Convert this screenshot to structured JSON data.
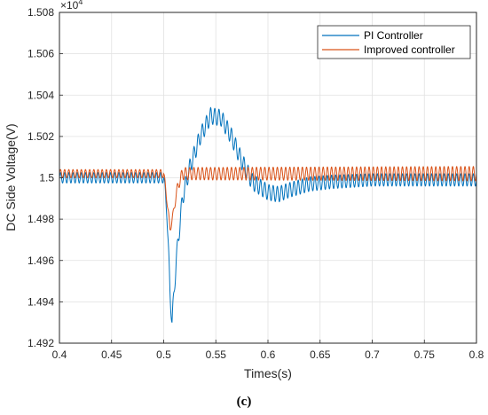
{
  "chart_data": {
    "type": "line",
    "title": "",
    "xlabel": "Times(s)",
    "ylabel": "DC Side Voltage(V)",
    "xlim": [
      0.4,
      0.8
    ],
    "ylim": [
      1.492,
      1.508
    ],
    "y_exponent_label": "×10",
    "y_exponent_power": "4",
    "x_ticks": [
      "0.4",
      "0.45",
      "0.5",
      "0.55",
      "0.6",
      "0.65",
      "0.7",
      "0.75",
      "0.8"
    ],
    "y_ticks": [
      "1.492",
      "1.494",
      "1.496",
      "1.498",
      "1.5",
      "1.502",
      "1.504",
      "1.506",
      "1.508"
    ],
    "grid": true,
    "legend_position": "top-right",
    "caption": "(c)",
    "series": [
      {
        "name": "PI Controller",
        "color": "#0072BD",
        "ripple_hz": 250,
        "envelope": [
          [
            0.4,
            1.5,
            0.00025
          ],
          [
            0.5,
            1.5,
            0.00025
          ],
          [
            0.503,
            1.4985,
            0.0004
          ],
          [
            0.506,
            1.4945,
            0.0004
          ],
          [
            0.508,
            1.493,
            0.0004
          ],
          [
            0.512,
            1.496,
            0.0004
          ],
          [
            0.518,
            1.499,
            0.0004
          ],
          [
            0.525,
            1.5005,
            0.0004
          ],
          [
            0.535,
            1.502,
            0.0004
          ],
          [
            0.545,
            1.503,
            0.0004
          ],
          [
            0.555,
            1.5029,
            0.0004
          ],
          [
            0.565,
            1.502,
            0.0004
          ],
          [
            0.575,
            1.5008,
            0.0004
          ],
          [
            0.585,
            1.4998,
            0.0004
          ],
          [
            0.6,
            1.4993,
            0.00038
          ],
          [
            0.61,
            1.4992,
            0.00038
          ],
          [
            0.62,
            1.4994,
            0.00036
          ],
          [
            0.64,
            1.4997,
            0.00035
          ],
          [
            0.66,
            1.4998,
            0.00033
          ],
          [
            0.7,
            1.4999,
            0.0003
          ],
          [
            0.8,
            1.4999,
            0.0003
          ]
        ]
      },
      {
        "name": "Improved controller",
        "color": "#D95319",
        "ripple_hz": 250,
        "envelope": [
          [
            0.4,
            1.5002,
            0.0002
          ],
          [
            0.5,
            1.5002,
            0.0002
          ],
          [
            0.503,
            1.499,
            0.0002
          ],
          [
            0.506,
            1.4975,
            0.0002
          ],
          [
            0.509,
            1.4982,
            0.0002
          ],
          [
            0.513,
            1.4995,
            0.0002
          ],
          [
            0.518,
            1.5002,
            0.0003
          ],
          [
            0.525,
            1.5002,
            0.0003
          ],
          [
            0.8,
            1.5002,
            0.00035
          ]
        ]
      }
    ]
  }
}
